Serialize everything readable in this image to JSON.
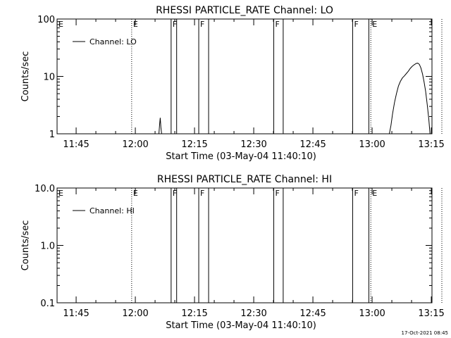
{
  "chart_data": [
    {
      "type": "line",
      "title": "RHESSI PARTICLE_RATE Channel: LO",
      "xlabel": "Start Time (03-May-04 11:40:10)",
      "ylabel": "Counts/sec",
      "yscale": "log",
      "ylim": [
        1,
        100
      ],
      "xlim_min_after_start": [
        0,
        95
      ],
      "yticks": [
        1,
        10,
        100
      ],
      "ytick_labels": [
        "1",
        "10",
        "100"
      ],
      "xticks_min": [
        4.83,
        19.83,
        34.83,
        49.83,
        64.83,
        79.83,
        94.83
      ],
      "xtick_labels": [
        "11:45",
        "12:00",
        "12:15",
        "12:30",
        "12:45",
        "13:00",
        "13:15"
      ],
      "legend": "top-left",
      "series": [
        {
          "name": "Channel: LO",
          "points": [
            [
              25.8,
              1.0
            ],
            [
              26.0,
              1.5
            ],
            [
              26.15,
              1.9
            ],
            [
              26.3,
              1.3
            ],
            [
              26.5,
              1.0
            ],
            [
              84.2,
              1.0
            ],
            [
              84.6,
              1.4
            ],
            [
              85.0,
              2.2
            ],
            [
              85.5,
              3.5
            ],
            [
              86.0,
              5.0
            ],
            [
              86.5,
              6.8
            ],
            [
              87.0,
              8.2
            ],
            [
              87.5,
              9.4
            ],
            [
              88.0,
              10.2
            ],
            [
              88.5,
              11.2
            ],
            [
              89.0,
              12.3
            ],
            [
              89.5,
              13.8
            ],
            [
              90.0,
              15.0
            ],
            [
              90.5,
              16.0
            ],
            [
              91.0,
              16.8
            ],
            [
              91.4,
              17.0
            ],
            [
              91.8,
              16.2
            ],
            [
              92.2,
              14.0
            ],
            [
              92.6,
              11.0
            ],
            [
              93.0,
              8.0
            ],
            [
              93.4,
              5.5
            ],
            [
              93.8,
              3.2
            ],
            [
              94.2,
              1.8
            ],
            [
              94.5,
              1.0
            ]
          ]
        }
      ],
      "events": [
        {
          "label": "E",
          "style": "dotted",
          "x_min": 18.9
        },
        {
          "label": "F",
          "style": "solid",
          "x_min": 28.9
        },
        {
          "label": "",
          "style": "solid",
          "x_min": 30.3
        },
        {
          "label": "F",
          "style": "solid",
          "x_min": 35.9
        },
        {
          "label": "",
          "style": "solid",
          "x_min": 38.4
        },
        {
          "label": "F",
          "style": "solid",
          "x_min": 54.9
        },
        {
          "label": "",
          "style": "solid",
          "x_min": 57.3
        },
        {
          "label": "F",
          "style": "solid",
          "x_min": 74.9
        },
        {
          "label": "",
          "style": "solid",
          "x_min": 79.0
        },
        {
          "label": "E",
          "style": "dotted",
          "x_min": 79.5
        },
        {
          "label": "",
          "style": "dotted",
          "x_min": 97.5
        }
      ],
      "edge_labels": [
        {
          "label": "E",
          "x_min": 0
        }
      ]
    },
    {
      "type": "line",
      "title": "RHESSI PARTICLE_RATE Channel: HI",
      "xlabel": "Start Time (03-May-04 11:40:10)",
      "ylabel": "Counts/sec",
      "yscale": "log",
      "ylim": [
        0.1,
        10.0
      ],
      "xlim_min_after_start": [
        0,
        95
      ],
      "yticks": [
        0.1,
        1.0,
        10.0
      ],
      "ytick_labels": [
        "0.1",
        "1.0",
        "10.0"
      ],
      "xticks_min": [
        4.83,
        19.83,
        34.83,
        49.83,
        64.83,
        79.83,
        94.83
      ],
      "xtick_labels": [
        "11:45",
        "12:00",
        "12:15",
        "12:30",
        "12:45",
        "13:00",
        "13:15"
      ],
      "legend": "top-left",
      "series": [
        {
          "name": "Channel: HI",
          "points": []
        }
      ],
      "events": [
        {
          "label": "E",
          "style": "dotted",
          "x_min": 18.9
        },
        {
          "label": "F",
          "style": "solid",
          "x_min": 28.9
        },
        {
          "label": "",
          "style": "solid",
          "x_min": 30.3
        },
        {
          "label": "F",
          "style": "solid",
          "x_min": 35.9
        },
        {
          "label": "",
          "style": "solid",
          "x_min": 38.4
        },
        {
          "label": "F",
          "style": "solid",
          "x_min": 54.9
        },
        {
          "label": "",
          "style": "solid",
          "x_min": 57.3
        },
        {
          "label": "F",
          "style": "solid",
          "x_min": 74.9
        },
        {
          "label": "",
          "style": "solid",
          "x_min": 79.0
        },
        {
          "label": "E",
          "style": "dotted",
          "x_min": 79.5
        },
        {
          "label": "",
          "style": "dotted",
          "x_min": 97.5
        }
      ],
      "edge_labels": [
        {
          "label": "E",
          "x_min": 0
        }
      ]
    }
  ],
  "footer": {
    "timestamp": "17-Oct-2021 08:45"
  }
}
